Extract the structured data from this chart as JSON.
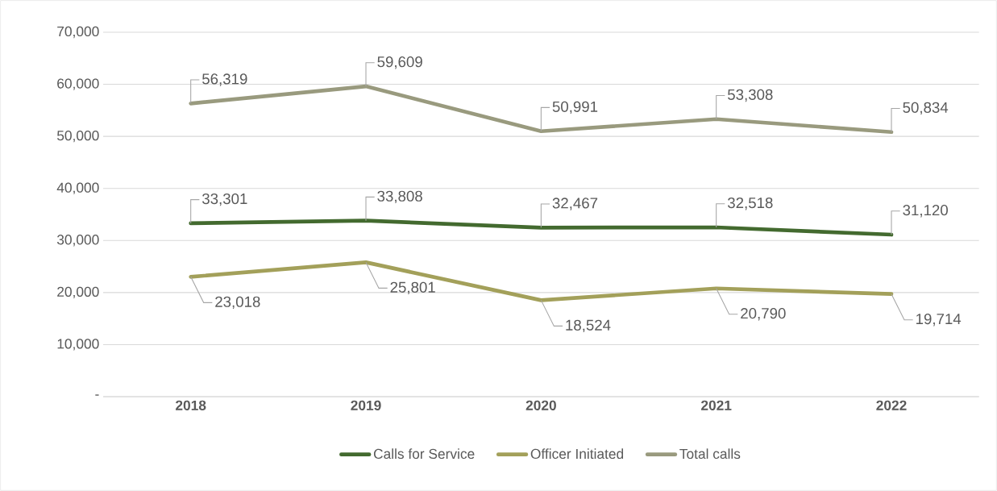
{
  "chart_data": {
    "type": "line",
    "categories": [
      "2018",
      "2019",
      "2020",
      "2021",
      "2022"
    ],
    "series": [
      {
        "name": "Calls for Service",
        "color": "#436a2f",
        "values": [
          33301,
          33808,
          32467,
          32518,
          31120
        ],
        "value_labels": [
          "33,301",
          "33,808",
          "32,467",
          "32,518",
          "31,120"
        ]
      },
      {
        "name": "Officer Initiated",
        "color": "#a3a05a",
        "values": [
          23018,
          25801,
          18524,
          20790,
          19714
        ],
        "value_labels": [
          "23,018",
          "25,801",
          "18,524",
          "20,790",
          "19,714"
        ]
      },
      {
        "name": "Total calls",
        "color": "#999a7e",
        "values": [
          56319,
          59609,
          50991,
          53308,
          50834
        ],
        "value_labels": [
          "56,319",
          "59,609",
          "50,991",
          "53,308",
          "50,834"
        ]
      }
    ],
    "ylim": [
      0,
      70000
    ],
    "yticks": [
      {
        "value": 0,
        "label": "-"
      },
      {
        "value": 10000,
        "label": "10,000"
      },
      {
        "value": 20000,
        "label": "20,000"
      },
      {
        "value": 30000,
        "label": "30,000"
      },
      {
        "value": 40000,
        "label": "40,000"
      },
      {
        "value": 50000,
        "label": "50,000"
      },
      {
        "value": 60000,
        "label": "60,000"
      },
      {
        "value": 70000,
        "label": "70,000"
      }
    ],
    "grid": "y",
    "legend": "bottom",
    "marker": "none",
    "line_style": "solid"
  }
}
